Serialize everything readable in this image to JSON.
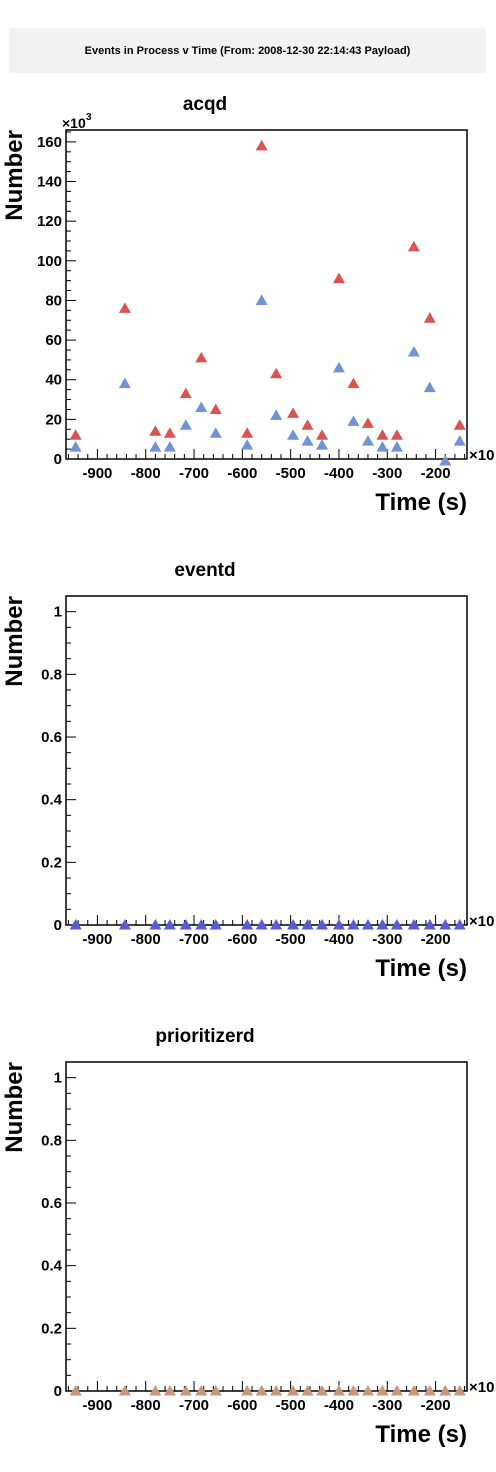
{
  "header": {
    "title": "Events in Process v Time (From: 2008-12-30 22:14:43 Payload)"
  },
  "chart_data": [
    {
      "type": "scatter",
      "title": "acqd",
      "xlabel": "Time (s)",
      "ylabel": "Number",
      "x_multiplier_label": "×10",
      "y_multiplier_label": "×10",
      "y_multiplier_exp": "3",
      "xlim": [
        -965,
        -135
      ],
      "ylim": [
        0,
        166
      ],
      "xticks": [
        -900,
        -800,
        -700,
        -600,
        -500,
        -400,
        -300,
        -200
      ],
      "yticks": [
        0,
        20,
        40,
        60,
        80,
        100,
        120,
        140,
        160
      ],
      "series": [
        {
          "color": "#d9534f",
          "points": [
            [
              -945,
              12
            ],
            [
              -843,
              76
            ],
            [
              -780,
              14
            ],
            [
              -750,
              13
            ],
            [
              -717,
              33
            ],
            [
              -685,
              51
            ],
            [
              -655,
              25
            ],
            [
              -590,
              13
            ],
            [
              -560,
              158
            ],
            [
              -530,
              43
            ],
            [
              -495,
              23
            ],
            [
              -465,
              17
            ],
            [
              -435,
              12
            ],
            [
              -400,
              91
            ],
            [
              -370,
              38
            ],
            [
              -340,
              18
            ],
            [
              -310,
              12
            ],
            [
              -280,
              12
            ],
            [
              -245,
              107
            ],
            [
              -212,
              71
            ],
            [
              -150,
              17
            ]
          ]
        },
        {
          "color": "#6f93d6",
          "points": [
            [
              -945,
              6
            ],
            [
              -843,
              38
            ],
            [
              -780,
              6
            ],
            [
              -750,
              6
            ],
            [
              -717,
              17
            ],
            [
              -685,
              26
            ],
            [
              -655,
              13
            ],
            [
              -590,
              7
            ],
            [
              -560,
              80
            ],
            [
              -530,
              22
            ],
            [
              -495,
              12
            ],
            [
              -465,
              9
            ],
            [
              -435,
              7
            ],
            [
              -400,
              46
            ],
            [
              -370,
              19
            ],
            [
              -340,
              9
            ],
            [
              -310,
              6
            ],
            [
              -280,
              6
            ],
            [
              -245,
              54
            ],
            [
              -212,
              36
            ],
            [
              -180,
              -1
            ],
            [
              -150,
              9
            ]
          ]
        }
      ]
    },
    {
      "type": "scatter",
      "title": "eventd",
      "xlabel": "Time (s)",
      "ylabel": "Number",
      "x_multiplier_label": "×10",
      "xlim": [
        -965,
        -135
      ],
      "ylim": [
        0,
        1.05
      ],
      "xticks": [
        -900,
        -800,
        -700,
        -600,
        -500,
        -400,
        -300,
        -200
      ],
      "yticks": [
        0,
        0.2,
        0.4,
        0.6,
        0.8,
        1
      ],
      "series": [
        {
          "color": "#5a5ad6",
          "points": [
            [
              -945,
              0
            ],
            [
              -843,
              0
            ],
            [
              -780,
              0
            ],
            [
              -750,
              0
            ],
            [
              -717,
              0
            ],
            [
              -685,
              0
            ],
            [
              -655,
              0
            ],
            [
              -590,
              0
            ],
            [
              -560,
              0
            ],
            [
              -530,
              0
            ],
            [
              -495,
              0
            ],
            [
              -465,
              0
            ],
            [
              -435,
              0
            ],
            [
              -400,
              0
            ],
            [
              -370,
              0
            ],
            [
              -340,
              0
            ],
            [
              -310,
              0
            ],
            [
              -280,
              0
            ],
            [
              -245,
              0
            ],
            [
              -212,
              0
            ],
            [
              -180,
              0
            ],
            [
              -150,
              0
            ]
          ]
        }
      ]
    },
    {
      "type": "scatter",
      "title": "prioritizerd",
      "xlabel": "Time (s)",
      "ylabel": "Number",
      "x_multiplier_label": "×10",
      "xlim": [
        -965,
        -135
      ],
      "ylim": [
        0,
        1.05
      ],
      "xticks": [
        -900,
        -800,
        -700,
        -600,
        -500,
        -400,
        -300,
        -200
      ],
      "yticks": [
        0,
        0.2,
        0.4,
        0.6,
        0.8,
        1
      ],
      "series": [
        {
          "color": "#c9967a",
          "points": [
            [
              -945,
              0
            ],
            [
              -843,
              0
            ],
            [
              -780,
              0
            ],
            [
              -750,
              0
            ],
            [
              -717,
              0
            ],
            [
              -685,
              0
            ],
            [
              -655,
              0
            ],
            [
              -590,
              0
            ],
            [
              -560,
              0
            ],
            [
              -530,
              0
            ],
            [
              -495,
              0
            ],
            [
              -465,
              0
            ],
            [
              -435,
              0
            ],
            [
              -400,
              0
            ],
            [
              -370,
              0
            ],
            [
              -340,
              0
            ],
            [
              -310,
              0
            ],
            [
              -280,
              0
            ],
            [
              -245,
              0
            ],
            [
              -212,
              0
            ],
            [
              -180,
              0
            ],
            [
              -150,
              0
            ]
          ]
        }
      ]
    }
  ]
}
